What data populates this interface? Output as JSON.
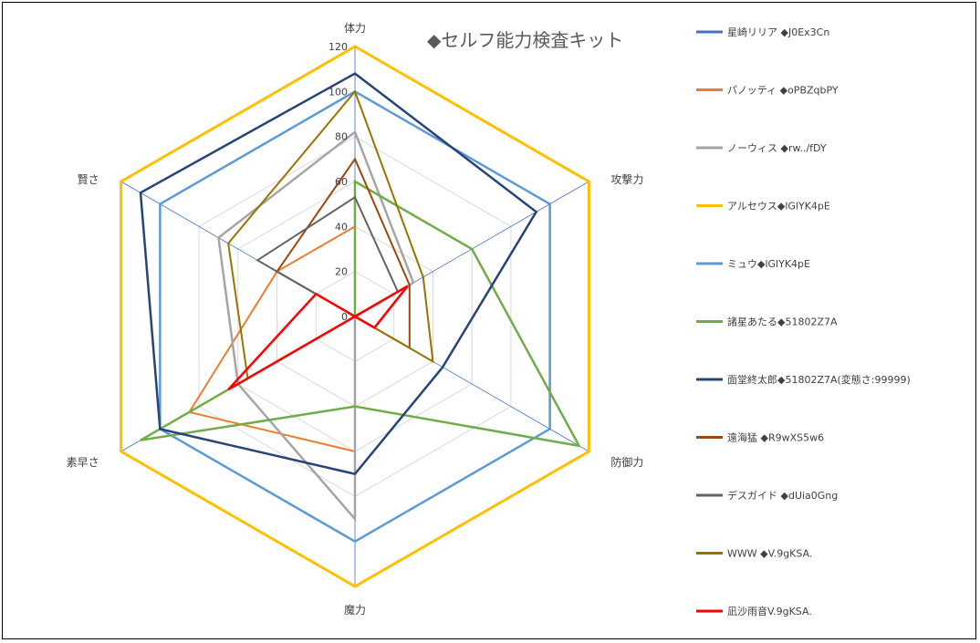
{
  "chart_data": {
    "type": "radar",
    "title": "◆セルフ能力検査キット",
    "axes": [
      "体力",
      "攻撃力",
      "防御力",
      "魔力",
      "素早さ",
      "賢さ"
    ],
    "ticks": [
      "0",
      "20",
      "40",
      "60",
      "80",
      "100",
      "120"
    ],
    "rmax": 120,
    "legend_position": "right",
    "series": [
      {
        "name": "星崎リリア ◆J0Ex3Cn",
        "color": "#4472C4",
        "width": 2,
        "values": [
          0,
          0,
          0,
          0,
          0,
          0
        ]
      },
      {
        "name": "パノッティ ◆oPBZqbPY",
        "color": "#ED7D31",
        "width": 2,
        "values": [
          40,
          0,
          0,
          60,
          85,
          40
        ]
      },
      {
        "name": "ノーウィス ◆rw../fDY",
        "color": "#A5A5A5",
        "width": 2.5,
        "values": [
          82,
          30,
          0,
          90,
          60,
          70
        ]
      },
      {
        "name": "アルセウス◆lGlYK4pE",
        "color": "#FFC000",
        "width": 3,
        "values": [
          120,
          120,
          120,
          120,
          120,
          120
        ]
      },
      {
        "name": "ミュウ◆lGlYK4pE",
        "color": "#5B9BD5",
        "width": 2.5,
        "values": [
          100,
          100,
          100,
          100,
          100,
          100
        ]
      },
      {
        "name": "諸星あたる◆51802Z7A",
        "color": "#70AD47",
        "width": 2.5,
        "values": [
          60,
          60,
          115,
          40,
          110,
          0
        ]
      },
      {
        "name": "面堂終太郎◆51802Z7A(変態さ:99999)",
        "color": "#264478",
        "width": 2.5,
        "values": [
          108,
          93,
          45,
          70,
          100,
          110
        ]
      },
      {
        "name": "遠海猛 ◆R9wXS5w6",
        "color": "#9E480E",
        "width": 2,
        "values": [
          70,
          28,
          28,
          0,
          0,
          40
        ]
      },
      {
        "name": "デスガイド ◆dUia0Gng",
        "color": "#636363",
        "width": 2,
        "values": [
          53,
          22,
          0,
          0,
          0,
          50
        ]
      },
      {
        "name": "WWW ◆V.9gKSA.",
        "color": "#997300",
        "width": 2,
        "values": [
          100,
          35,
          40,
          0,
          55,
          65
        ]
      },
      {
        "name": "凪沙雨音V.9gKSA.",
        "color": "#FF0000",
        "width": 2.5,
        "values": [
          0,
          27,
          10,
          0,
          65,
          20
        ]
      }
    ]
  }
}
